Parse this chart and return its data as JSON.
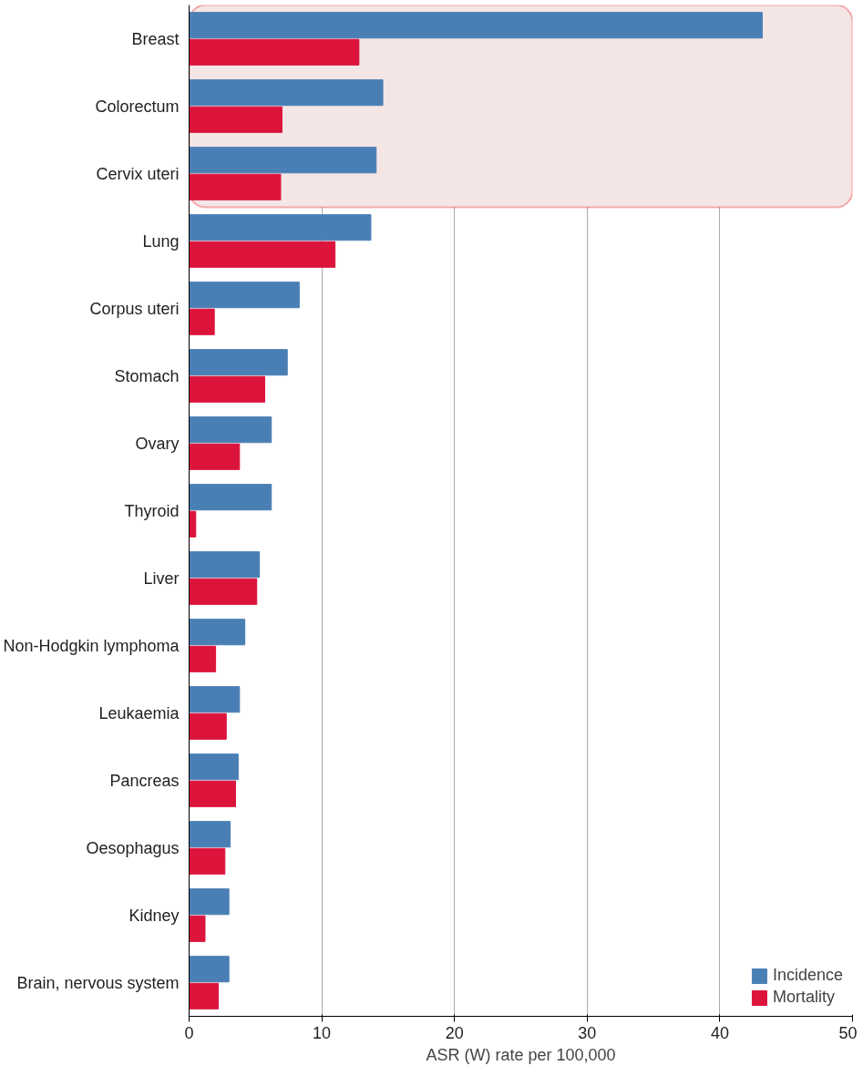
{
  "chart_data": {
    "type": "bar",
    "orientation": "horizontal",
    "xlabel": "ASR (W) rate per 100,000",
    "categories": [
      "Breast",
      "Colorectum",
      "Cervix uteri",
      "Lung",
      "Corpus uteri",
      "Stomach",
      "Ovary",
      "Thyroid",
      "Liver",
      "Non-Hodgkin lymphoma",
      "Leukaemia",
      "Pancreas",
      "Oesophagus",
      "Kidney",
      "Brain, nervous system"
    ],
    "series": [
      {
        "name": "Incidence",
        "color": "#4a7fb5",
        "values": [
          43.2,
          14.6,
          14.1,
          13.7,
          8.3,
          7.4,
          6.2,
          6.2,
          5.3,
          4.2,
          3.8,
          3.7,
          3.1,
          3.0,
          3.0
        ]
      },
      {
        "name": "Mortality",
        "color": "#dc143c",
        "values": [
          12.8,
          7.0,
          6.9,
          11.0,
          1.9,
          5.7,
          3.8,
          0.5,
          5.1,
          2.0,
          2.8,
          3.5,
          2.7,
          1.2,
          2.2
        ]
      }
    ],
    "xlim": [
      0,
      50
    ],
    "xticks": [
      0,
      10,
      20,
      30,
      40,
      50
    ],
    "grid": "x",
    "legend": "bottom right",
    "bands": [
      {
        "axis": "y",
        "from": "Breast",
        "to": "Cervix uteri",
        "color": "#f5e6e6"
      }
    ]
  }
}
